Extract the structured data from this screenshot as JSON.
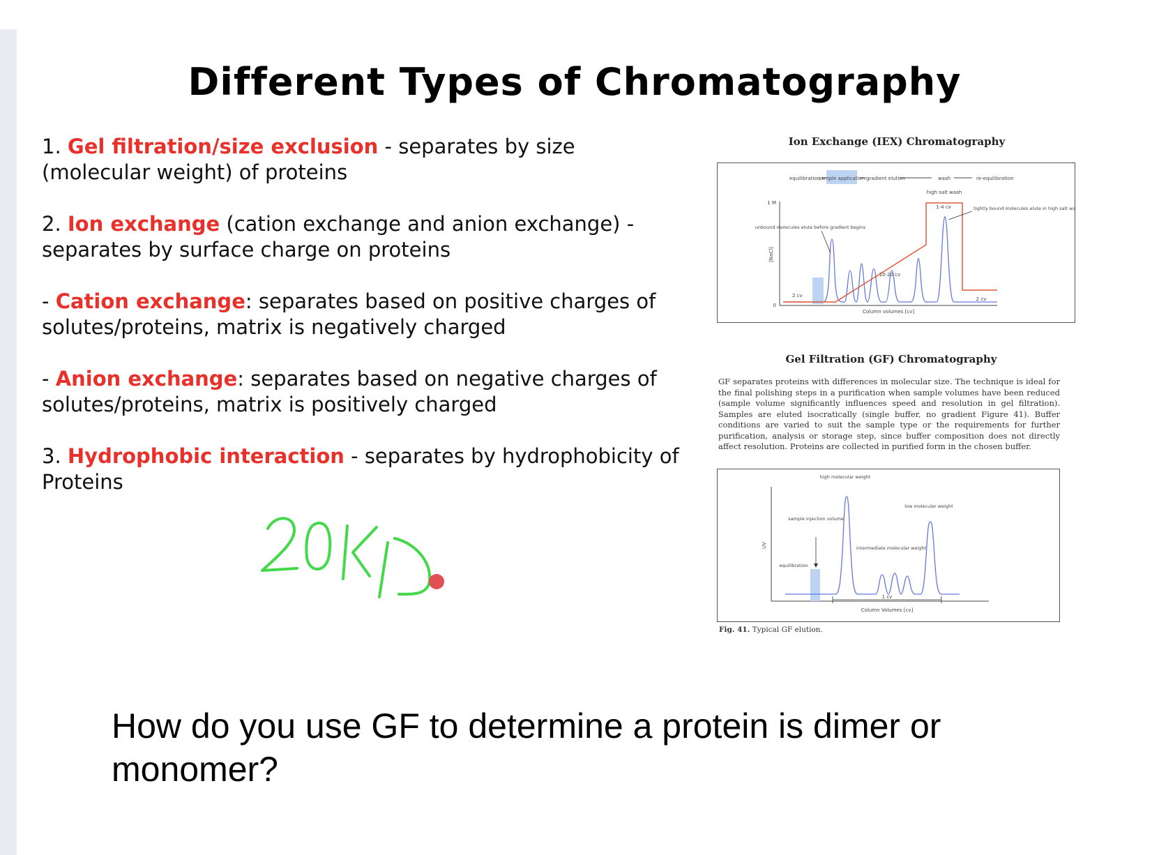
{
  "slide": {
    "title": "Different Types of Chromatography",
    "items": [
      {
        "prefix": "1. ",
        "highlight": "Gel filtration/size exclusion",
        "text": " - separates by size (molecular weight) of proteins"
      },
      {
        "prefix": "2. ",
        "highlight": "Ion exchange",
        "text": " (cation exchange and anion exchange) - separates by surface charge on proteins"
      },
      {
        "prefix": "- ",
        "highlight": "Cation exchange",
        "text": ": separates based on positive charges of solutes/proteins, matrix is negatively charged"
      },
      {
        "prefix": "- ",
        "highlight": "Anion exchange",
        "text": ": separates based on negative charges of solutes/proteins, matrix is positively charged"
      },
      {
        "prefix": "3. ",
        "highlight": "Hydrophobic interaction",
        "text": " - separates by hydrophobicity of Proteins"
      }
    ],
    "handwriting": "20kD",
    "question": "How do you use GF to determine a protein is dimer or monomer?"
  },
  "iex_figure": {
    "title": "Ion Exchange (IEX) Chromatography",
    "phases": [
      "equilibration",
      "sample application",
      "gradient elution",
      "wash",
      "re-equilibration"
    ],
    "high_salt_wash": "high salt wash",
    "cv_1_4": "1-4 cv",
    "y_max": "1 M",
    "y_zero": "0",
    "ylabel": "[NaCl]",
    "xlabel": "Column volumes [cv]",
    "unbound_note": "unbound molecules elute before gradient begins",
    "tight_note": "tightly bound molecules elute in high salt wash",
    "cv_2_left": "2 cv",
    "cv_10_20": "10-20 cv",
    "cv_2_right": "2 cv"
  },
  "gf_figure": {
    "title": "Gel Filtration (GF) Chromatography",
    "description": "GF separates proteins with differences in molecular size. The technique is ideal for the final polishing steps in a purification when sample volumes have been reduced (sample volume significantly influences speed and resolution in gel filtration). Samples are eluted isocratically (single buffer, no gradient Figure 41). Buffer conditions are varied to suit the sample type or the requirements for further purification, analysis or storage step, since buffer composition does not directly affect resolution. Proteins are collected in purified form in the chosen buffer.",
    "high_mw": "high molecular weight",
    "low_mw": "low molecular weight",
    "intermediate_mw": "intermediate molecular weight",
    "sample_injection": "sample injection volume",
    "equilibration": "equilibration",
    "ylabel": "UV",
    "xlabel": "Column Volumes [cv]",
    "cv_1": "1 cv",
    "caption_label": "Fig. 41.",
    "caption_text": " Typical GF elution."
  },
  "colors": {
    "highlight": "#e8312b",
    "handwriting": "#45d84a",
    "pointer": "#e24f55",
    "trace_blue": "#6677dd",
    "trace_red": "#e05a3a",
    "sample_fill": "#bcd3f2"
  }
}
